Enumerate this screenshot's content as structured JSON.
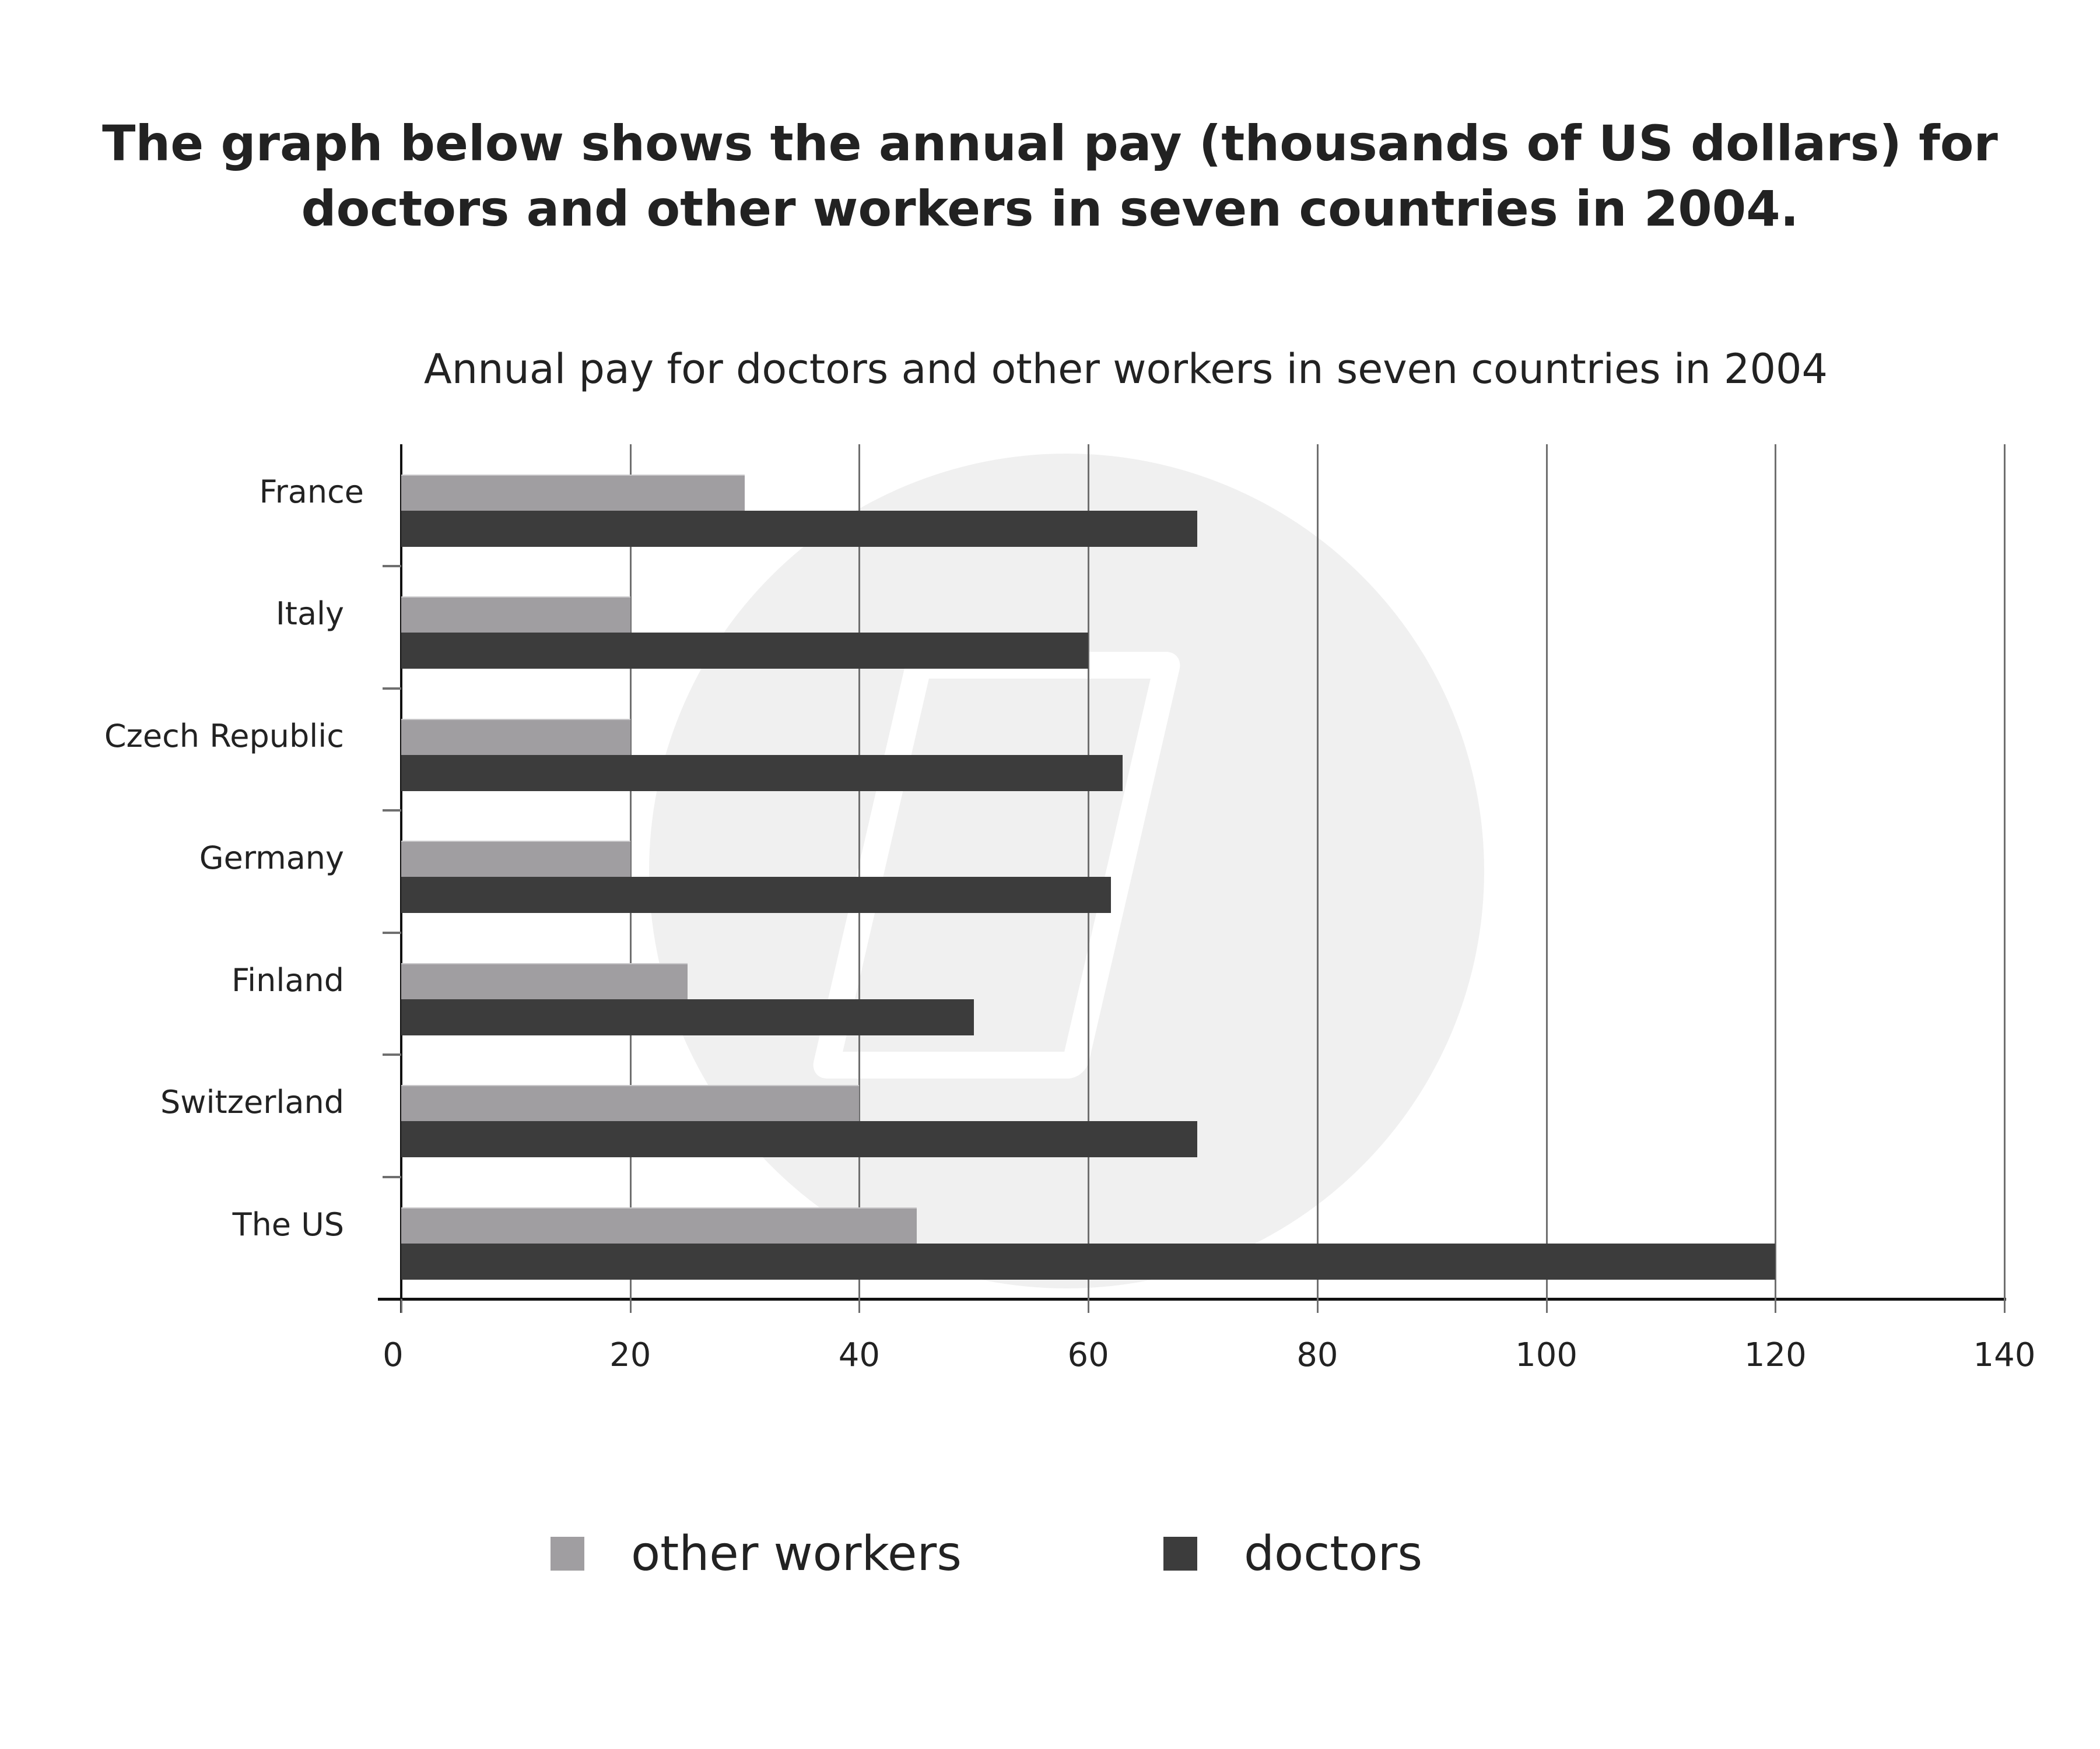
{
  "heading": {
    "line1": "The graph below shows the annual pay (thousands of US dollars) for",
    "line2": "doctors and other workers in seven countries in 2004."
  },
  "chart_title": "Annual pay for doctors and other workers in seven countries in 2004",
  "colors": {
    "other_workers": "#a09ea1",
    "doctors": "#3c3c3c",
    "gridline": "#6f6f6f",
    "watermark": "#f0f0f0"
  },
  "x_ticks": [
    "0",
    "20",
    "40",
    "60",
    "80",
    "100",
    "120",
    "140"
  ],
  "categories": [
    "France",
    "Italy",
    "Czech Republic",
    "Germany",
    "Finland",
    "Switzerland",
    "The US"
  ],
  "legend": {
    "other_workers": "other workers",
    "doctors": "doctors"
  },
  "chart_data": {
    "type": "bar",
    "orientation": "horizontal",
    "title": "Annual pay for doctors and other workers in seven countries in 2004",
    "subtitle": "The graph below shows the annual pay (thousands of US dollars) for doctors and other workers in seven countries in 2004.",
    "categories": [
      "France",
      "Italy",
      "Czech Republic",
      "Germany",
      "Finland",
      "Switzerland",
      "The US"
    ],
    "series": [
      {
        "name": "other workers",
        "color": "#a09ea1",
        "values": [
          30,
          20,
          20,
          20,
          25,
          40,
          45
        ]
      },
      {
        "name": "doctors",
        "color": "#3c3c3c",
        "values": [
          69.5,
          60,
          63,
          62,
          50,
          69.5,
          120
        ]
      }
    ],
    "xlabel": "",
    "ylabel": "",
    "xlim": [
      0,
      140
    ],
    "x_ticks": [
      0,
      20,
      40,
      60,
      80,
      100,
      120,
      140
    ],
    "grid": "vertical",
    "legend_position": "bottom",
    "units": "thousands of US dollars"
  }
}
